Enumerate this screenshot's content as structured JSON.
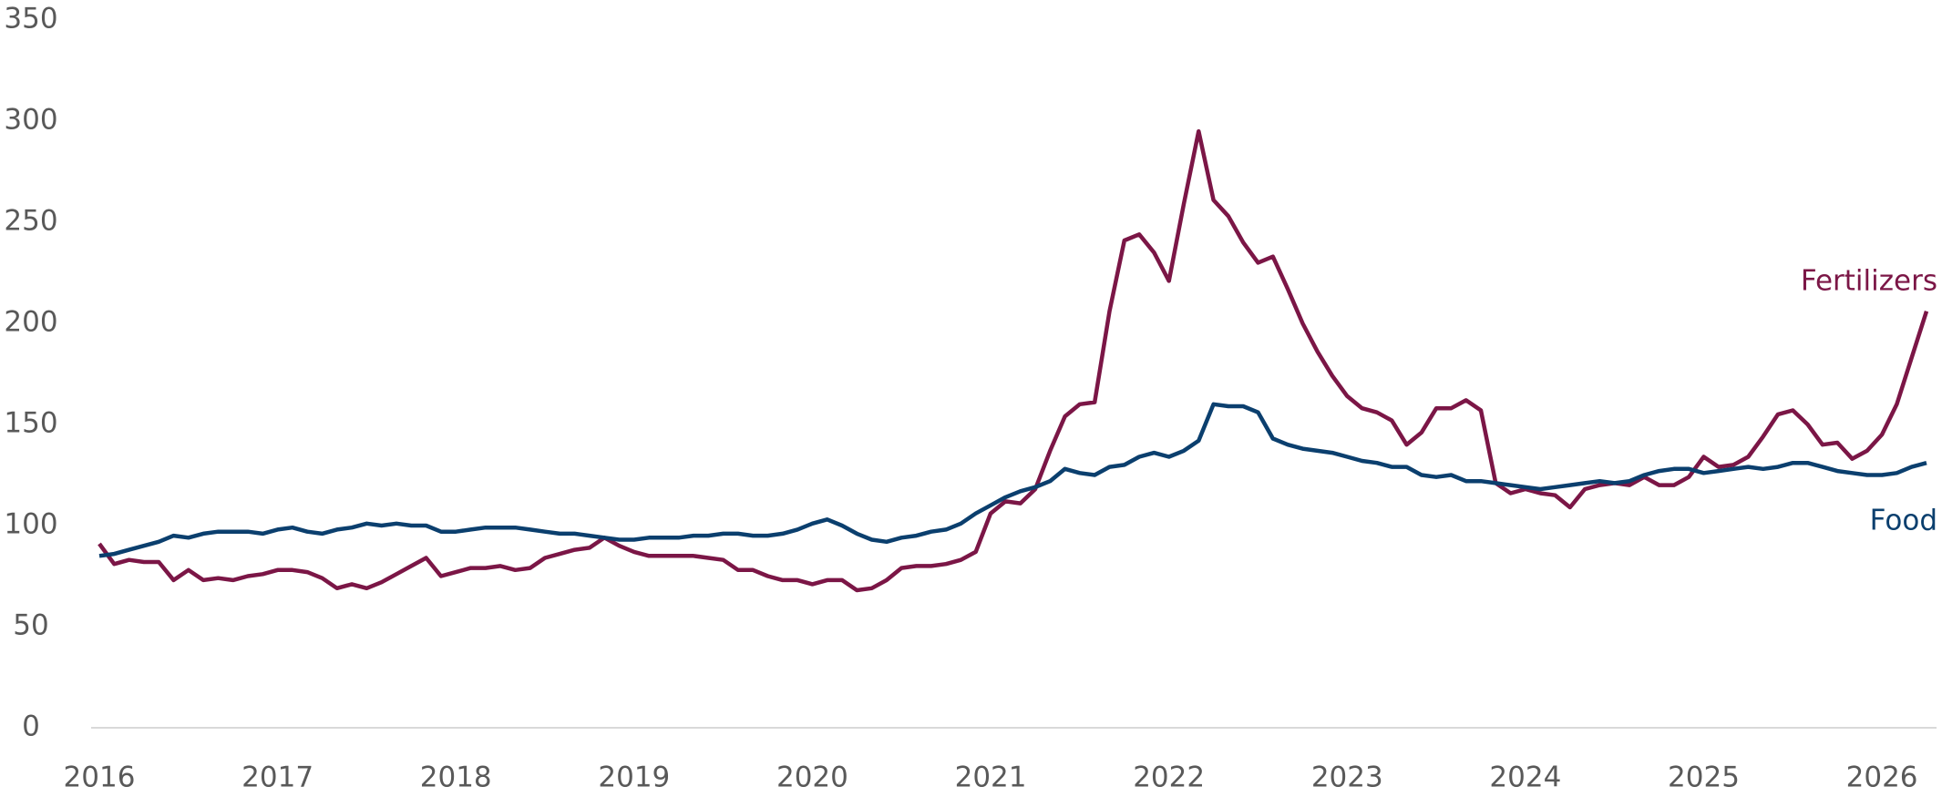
{
  "chart_data": {
    "type": "line",
    "categories": [
      "2016",
      null,
      null,
      null,
      null,
      null,
      null,
      null,
      null,
      null,
      null,
      null,
      "2017",
      null,
      null,
      null,
      null,
      null,
      null,
      null,
      null,
      null,
      null,
      null,
      "2018",
      null,
      null,
      null,
      null,
      null,
      null,
      null,
      null,
      null,
      null,
      null,
      "2019",
      null,
      null,
      null,
      null,
      null,
      null,
      null,
      null,
      null,
      null,
      null,
      "2020",
      null,
      null,
      null,
      null,
      null,
      null,
      null,
      null,
      null,
      null,
      null,
      "2021",
      null,
      null,
      null,
      null,
      null,
      null,
      null,
      null,
      null,
      null,
      null,
      "2022",
      null,
      null,
      null,
      null,
      null,
      null,
      null,
      null,
      null,
      null,
      null,
      "2023",
      null,
      null,
      null,
      null,
      null,
      null,
      null,
      null,
      null,
      null,
      null,
      "2024",
      null,
      null,
      null,
      null,
      null,
      null,
      null,
      null,
      null,
      null,
      null,
      "2025",
      null,
      null,
      null,
      null,
      null,
      null,
      null,
      null,
      null,
      null,
      null,
      "2026",
      null,
      null,
      null
    ],
    "series": [
      {
        "name": "Fertilizers",
        "color": "#7b1646",
        "values": [
          91,
          81,
          83,
          82,
          82,
          73,
          78,
          73,
          74,
          73,
          75,
          76,
          78,
          78,
          77,
          74,
          69,
          71,
          69,
          72,
          76,
          80,
          84,
          75,
          77,
          79,
          79,
          80,
          78,
          79,
          84,
          86,
          88,
          89,
          94,
          90,
          87,
          85,
          85,
          85,
          85,
          84,
          83,
          78,
          78,
          75,
          73,
          73,
          71,
          73,
          73,
          68,
          69,
          73,
          79,
          80,
          80,
          81,
          83,
          87,
          106,
          112,
          111,
          118,
          137,
          154,
          160,
          161,
          206,
          241,
          244,
          235,
          221,
          259,
          295,
          261,
          253,
          240,
          230,
          233,
          217,
          200,
          186,
          174,
          164,
          158,
          156,
          152,
          140,
          146,
          158,
          158,
          162,
          157,
          121,
          116,
          118,
          116,
          115,
          109,
          118,
          120,
          121,
          120,
          124,
          120,
          120,
          124,
          134,
          129,
          130,
          134,
          144,
          155,
          157,
          150,
          140,
          141,
          133,
          137,
          145,
          160,
          183,
          206
        ]
      },
      {
        "name": "Food",
        "color": "#0b3f6e",
        "values": [
          85,
          86,
          88,
          90,
          92,
          95,
          94,
          96,
          97,
          97,
          97,
          96,
          98,
          99,
          97,
          96,
          98,
          99,
          101,
          100,
          101,
          100,
          100,
          97,
          97,
          98,
          99,
          99,
          99,
          98,
          97,
          96,
          96,
          95,
          94,
          93,
          93,
          94,
          94,
          94,
          95,
          95,
          96,
          96,
          95,
          95,
          96,
          98,
          101,
          103,
          100,
          96,
          93,
          92,
          94,
          95,
          97,
          98,
          101,
          106,
          110,
          114,
          117,
          119,
          122,
          128,
          126,
          125,
          129,
          130,
          134,
          136,
          134,
          137,
          142,
          160,
          159,
          159,
          156,
          143,
          140,
          138,
          137,
          136,
          134,
          132,
          131,
          129,
          129,
          125,
          124,
          125,
          122,
          122,
          121,
          120,
          119,
          118,
          119,
          120,
          121,
          122,
          121,
          122,
          125,
          127,
          128,
          128,
          126,
          127,
          128,
          129,
          128,
          129,
          131,
          131,
          129,
          127,
          126,
          125,
          125,
          126,
          129,
          131
        ]
      }
    ],
    "ylim": [
      0,
      350
    ],
    "yticks": [
      0,
      50,
      100,
      150,
      200,
      250,
      300,
      350
    ],
    "grid": false
  }
}
